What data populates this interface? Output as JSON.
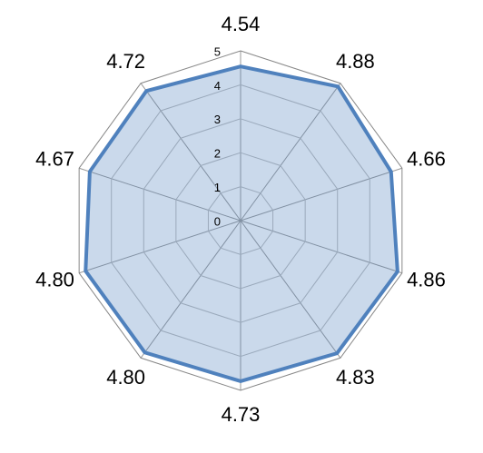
{
  "chart_data": {
    "type": "radar",
    "categories": [
      null,
      null,
      null,
      null,
      null,
      null,
      null,
      null,
      null,
      null
    ],
    "values": [
      4.54,
      4.88,
      4.66,
      4.86,
      4.83,
      4.73,
      4.8,
      4.8,
      4.67,
      4.72
    ],
    "value_labels": [
      "4.54",
      "4.88",
      "4.66",
      "4.86",
      "4.83",
      "4.73",
      "4.80",
      "4.80",
      "4.67",
      "4.72"
    ],
    "color": "#4f81bd",
    "ylim": [
      0,
      5
    ],
    "yticks": [
      0,
      1,
      2,
      3,
      4,
      5
    ],
    "grid": true
  }
}
